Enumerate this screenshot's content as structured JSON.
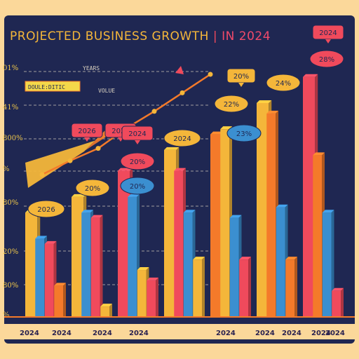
{
  "title": {
    "part1": "PROJECTED BUSINESS  GROWTH",
    "divider": "|",
    "part2": "IN 2024"
  },
  "annotations": {
    "years": "YEARS",
    "doublediting": "DOULE:DITIC",
    "volume": "VOLUE"
  },
  "chart_data": {
    "type": "bar",
    "title": "PROJECTED BUSINESS  GROWTH | IN 2024",
    "y_tick_labels": [
      "01%",
      "41%",
      "800%",
      "%",
      "80%",
      "20%",
      "80%",
      "%"
    ],
    "x_tick_labels": [
      "2024",
      "2024",
      "2024",
      "2024",
      "2024",
      "2024",
      "2024",
      "2024",
      "2024"
    ],
    "bubbles": [
      {
        "label": "2024",
        "color": "#f04a5c",
        "text_color": "#1f2752",
        "group": 0,
        "shape": "tag"
      },
      {
        "label": "2026",
        "color": "#f04a5c",
        "text_color": "#1f2752",
        "group": 0,
        "shape": "tag2"
      },
      {
        "label": "2026",
        "color": "#f4b63a",
        "text_color": "#1f2752",
        "group": 0,
        "shape": "cap"
      },
      {
        "label": "20%",
        "color": "#f4b63a",
        "text_color": "#1f2752",
        "group": 1,
        "shape": "cap"
      },
      {
        "label": "2024",
        "color": "#f04a5c",
        "text_color": "#1f2752",
        "group": 2,
        "shape": "tag"
      },
      {
        "label": "20%",
        "color": "#f04a5c",
        "text_color": "#1f2752",
        "group": 2,
        "shape": "cap"
      },
      {
        "label": "20%",
        "color": "#3b8fd0",
        "text_color": "#1f2752",
        "group": 2,
        "shape": "cap"
      },
      {
        "label": "2024",
        "color": "#f4b63a",
        "text_color": "#1f2752",
        "group": 3,
        "shape": "cap"
      },
      {
        "label": "20%",
        "color": "#f4b63a",
        "text_color": "#1f2752",
        "group": 4,
        "shape": "tag"
      },
      {
        "label": "22%",
        "color": "#f4b63a",
        "text_color": "#1f2752",
        "group": 4,
        "shape": "cap"
      },
      {
        "label": "23%",
        "color": "#3b8fd0",
        "text_color": "#1f2752",
        "group": 4,
        "shape": "cap"
      },
      {
        "label": "24%",
        "color": "#f4b63a",
        "text_color": "#1f2752",
        "group": 5,
        "shape": "cap"
      },
      {
        "label": "2024",
        "color": "#f04a5c",
        "text_color": "#1f2752",
        "group": 6,
        "shape": "tag"
      },
      {
        "label": "28%",
        "color": "#f04a5c",
        "text_color": "#1f2752",
        "group": 6,
        "shape": "cap"
      }
    ],
    "groups": [
      {
        "bars": [
          {
            "v": 0.4,
            "c": "#f4b63a"
          },
          {
            "v": 0.3,
            "c": "#3b8fd0"
          },
          {
            "v": 0.28,
            "c": "#f04a5c"
          },
          {
            "v": 0.12,
            "c": "#f47a2a"
          }
        ]
      },
      {
        "bars": [
          {
            "v": 0.46,
            "c": "#f4b63a"
          },
          {
            "v": 0.4,
            "c": "#3b8fd0"
          },
          {
            "v": 0.38,
            "c": "#f04a5c"
          },
          {
            "v": 0.04,
            "c": "#f4b63a"
          }
        ]
      },
      {
        "bars": [
          {
            "v": 0.56,
            "c": "#f04a5c"
          },
          {
            "v": 0.46,
            "c": "#3b8fd0"
          },
          {
            "v": 0.18,
            "c": "#f4b63a"
          },
          {
            "v": 0.14,
            "c": "#f04a5c"
          }
        ]
      },
      {
        "bars": [
          {
            "v": 0.64,
            "c": "#f4b63a"
          },
          {
            "v": 0.56,
            "c": "#f04a5c"
          },
          {
            "v": 0.4,
            "c": "#3b8fd0"
          },
          {
            "v": 0.22,
            "c": "#f4b63a"
          }
        ]
      },
      {
        "bars": [
          {
            "v": 0.7,
            "c": "#f47a2a"
          },
          {
            "v": 0.72,
            "c": "#f4b63a"
          },
          {
            "v": 0.38,
            "c": "#3b8fd0"
          },
          {
            "v": 0.22,
            "c": "#f04a5c"
          }
        ]
      },
      {
        "bars": [
          {
            "v": 0.82,
            "c": "#f4b63a"
          },
          {
            "v": 0.78,
            "c": "#f47a2a"
          },
          {
            "v": 0.42,
            "c": "#3b8fd0"
          },
          {
            "v": 0.22,
            "c": "#f47a2a"
          }
        ]
      },
      {
        "bars": [
          {
            "v": 0.92,
            "c": "#f04a5c"
          },
          {
            "v": 0.62,
            "c": "#f47a2a"
          },
          {
            "v": 0.4,
            "c": "#3b8fd0"
          },
          {
            "v": 0.1,
            "c": "#f04a5c"
          }
        ]
      }
    ],
    "trend_line": {
      "points": [
        0.05,
        0.14,
        0.22,
        0.35,
        0.46,
        0.58,
        0.7
      ],
      "color": "#f47a2a"
    },
    "colors": {
      "yellow": "#f4b63a",
      "orange": "#f47a2a",
      "red": "#f04a5c",
      "blue": "#3b8fd0",
      "navy": "#1f2752"
    },
    "grid": true
  }
}
